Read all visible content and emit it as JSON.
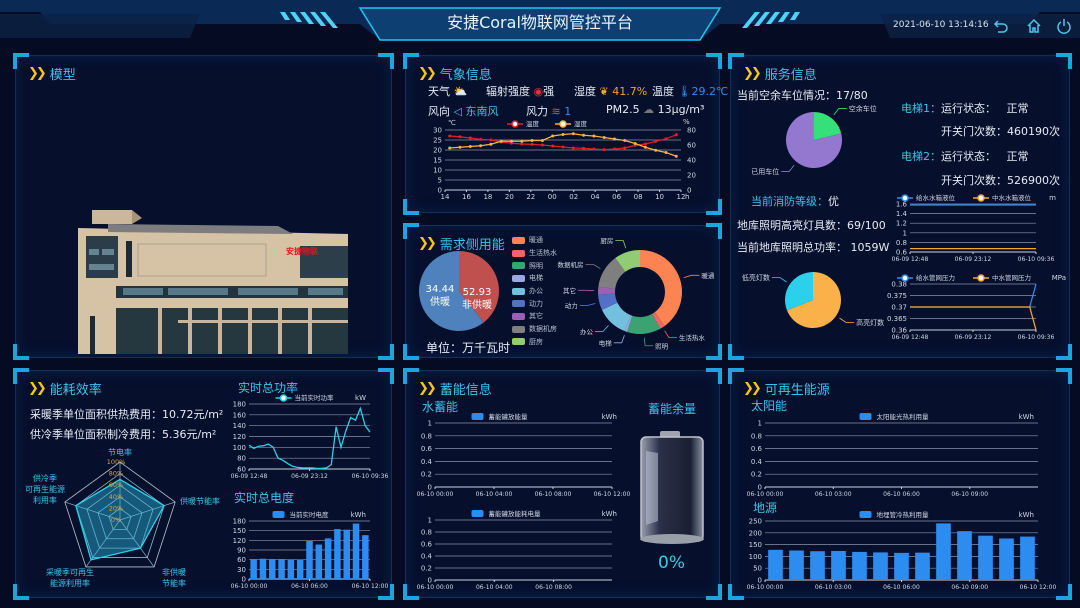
{
  "header": {
    "title": "安捷Coral物联网管控平台",
    "datetime": "2021-06-10 13:14:16",
    "icons": [
      "back-icon",
      "home-icon",
      "power-icon"
    ]
  },
  "colors": {
    "accent": "#3cc4ea",
    "bar": "#2d8cf0",
    "chevron": "#f5c518"
  },
  "model": {
    "title": "模型",
    "building_sign": "安捷物联"
  },
  "weather": {
    "title": "气象信息",
    "weather_label": "天气",
    "weather_icon": "cloudy-sun-icon",
    "radiation_label": "辐射强度",
    "radiation_value": "强",
    "humidity_label": "湿度",
    "humidity_value": "41.7%",
    "temperature_label": "温度",
    "temperature_value": "29.2℃",
    "wind_dir_label": "风向",
    "wind_dir_value": "东南风",
    "wind_force_label": "风力",
    "wind_force_value": "1",
    "pm_label": "PM2.5",
    "pm_value": "13μg/m³"
  },
  "demand": {
    "title": "需求侧用能",
    "unit": "单位：万千瓦时",
    "pie": [
      {
        "name": "供暖",
        "value": 34.44,
        "color": "#c0504d"
      },
      {
        "name": "非供暖",
        "value": 52.93,
        "color": "#4f81bd"
      }
    ],
    "donut": [
      {
        "name": "暖通",
        "value": 40,
        "color": "#fc8452"
      },
      {
        "name": "生活热水",
        "value": 2,
        "color": "#ee6666"
      },
      {
        "name": "照明",
        "value": 13,
        "color": "#3ba272"
      },
      {
        "name": "电梯",
        "value": 1,
        "color": "#9aa8e0"
      },
      {
        "name": "办公",
        "value": 12,
        "color": "#73c0de"
      },
      {
        "name": "动力",
        "value": 6,
        "color": "#5470c6"
      },
      {
        "name": "其它",
        "value": 3,
        "color": "#9a60b4"
      },
      {
        "name": "数据机房",
        "value": 13,
        "color": "#7f7f7f"
      },
      {
        "name": "厨房",
        "value": 10,
        "color": "#91cc75"
      }
    ]
  },
  "service": {
    "title": "服务信息",
    "parking_label": "当前空余车位情况：",
    "parking_value": "17/80",
    "parking_pie": [
      {
        "name": "空余车位",
        "value": 17,
        "color": "#35e07a"
      },
      {
        "name": "已用车位",
        "value": 63,
        "color": "#9478d0"
      }
    ],
    "elevators": [
      {
        "name": "电梯1：",
        "status_label": "运行状态：",
        "status": "正常",
        "count_label": "开关门次数：",
        "count": "460190次"
      },
      {
        "name": "电梯2：",
        "status_label": "运行状态：",
        "status": "正常",
        "count_label": "开关门次数：",
        "count": "526900次"
      }
    ],
    "fire_label": "当前消防等级：",
    "fire_value": "优",
    "lights_label": "地库照明高亮灯具数：",
    "lights_value": "69/100",
    "power_label": "当前地库照明总功率：",
    "power_value": "1059W",
    "light_pie": [
      {
        "name": "高亮灯数",
        "value": 69,
        "color": "#fbb14a"
      },
      {
        "name": "低亮灯数",
        "value": 31,
        "color": "#2bd0ea"
      }
    ]
  },
  "efficiency": {
    "title": "能耗效率",
    "heat_cost_label": "采暖季单位面积供热费用：",
    "heat_cost_value": "10.72元/m²",
    "cool_cost_label": "供冷季单位面积制冷费用：",
    "cool_cost_value": "5.36元/m²",
    "power_title": "实时总功率",
    "energy_title": "实时总电度"
  },
  "storage": {
    "title": "蓄能信息",
    "water_title": "水蓄能",
    "remaining_title": "蓄能余量",
    "remaining_value": "0%",
    "remaining_fraction": 0
  },
  "renewable": {
    "title": "可再生能源",
    "solar_title": "太阳能",
    "ground_title": "地源"
  },
  "chart_data": [
    {
      "id": "weather",
      "type": "line",
      "x": [
        "14",
        "15",
        "16",
        "17",
        "18",
        "19",
        "20",
        "21",
        "22",
        "23",
        "00",
        "01",
        "02",
        "03",
        "04",
        "05",
        "06",
        "07",
        "08",
        "09",
        "10",
        "11",
        "12"
      ],
      "x_ticks": [
        "14",
        "16",
        "18",
        "20",
        "22",
        "00",
        "02",
        "04",
        "06",
        "08",
        "10",
        "12"
      ],
      "xlabel": "h",
      "ylabel": "℃",
      "ylim": [
        0,
        30
      ],
      "y_ticks": [
        0,
        5,
        10,
        15,
        20,
        25,
        30
      ],
      "y2label": "%",
      "y2lim": [
        0,
        80
      ],
      "y2_ticks": [
        0,
        20,
        40,
        60,
        80
      ],
      "grid": true,
      "legend": "top",
      "series": [
        {
          "name": "温度",
          "axis": "left",
          "color": "#e0202a",
          "values": [
            27,
            26.6,
            26,
            25.3,
            25,
            24,
            23.4,
            23,
            22.8,
            22.5,
            22,
            21.5,
            21,
            20.8,
            20.5,
            20.2,
            20.5,
            21,
            22.3,
            23,
            24.3,
            25.6,
            27.6
          ]
        },
        {
          "name": "湿度",
          "axis": "right",
          "color": "#f5b342",
          "values": [
            56,
            57,
            58,
            59,
            61,
            65,
            65,
            65,
            66,
            66,
            72,
            74,
            75,
            73,
            72,
            70,
            68,
            66,
            62,
            57,
            53,
            50,
            45
          ]
        }
      ]
    },
    {
      "id": "water_level",
      "type": "line",
      "x_ticks": [
        "06-09 12:48",
        "06-09 23:12",
        "06-10 09:36"
      ],
      "ylabel": "m",
      "ylim": [
        0.6,
        1.6
      ],
      "y_ticks": [
        0.6,
        0.8,
        1,
        1.2,
        1.4,
        1.6
      ],
      "grid": true,
      "legend": "top",
      "series": [
        {
          "name": "给水水箱液位",
          "color": "#2d8cf0",
          "values": [
            1.58,
            1.58,
            1.58,
            1.58,
            1.58,
            1.58
          ]
        },
        {
          "name": "中水水箱液位",
          "color": "#f5a623",
          "values": [
            0.67,
            0.67,
            0.67,
            0.67,
            0.67,
            0.67
          ]
        }
      ]
    },
    {
      "id": "pipe_pressure",
      "type": "line",
      "x_ticks": [
        "06-09 12:48",
        "06-09 23:12",
        "06-10 09:36"
      ],
      "ylabel": "MPa",
      "ylim": [
        0.36,
        0.38
      ],
      "y_ticks": [
        0.36,
        0.365,
        0.37,
        0.375,
        0.38
      ],
      "grid": true,
      "legend": "top",
      "series": [
        {
          "name": "给水管网压力",
          "color": "#2d8cf0",
          "values": [
            0.37,
            0.37,
            0.37,
            0.37,
            0.37,
            0.37,
            0.37,
            0.37,
            0.37,
            0.37,
            0.37,
            0.37,
            0.37,
            0.37,
            0.37,
            0.37,
            0.37,
            0.37,
            0.37,
            0.37,
            0.38
          ]
        },
        {
          "name": "中水管网压力",
          "color": "#f5a623",
          "values": [
            0.37,
            0.37,
            0.37,
            0.37,
            0.37,
            0.37,
            0.37,
            0.37,
            0.37,
            0.37,
            0.37,
            0.37,
            0.37,
            0.37,
            0.37,
            0.37,
            0.37,
            0.37,
            0.37,
            0.37,
            0.36
          ]
        }
      ]
    },
    {
      "id": "radar",
      "type": "radar",
      "indicators": [
        "节电率",
        "供暖节能率",
        "非供暖节能率",
        "采暖季可再生能源利用率",
        "供冷季可再生能源利用率"
      ],
      "indicator_lines": [
        [
          "节电率"
        ],
        [
          "供暖",
          "节能率"
        ],
        [
          "非供暖",
          "节能率"
        ],
        [
          "采暖季可再生",
          "能源利用率"
        ],
        [
          "供冷季",
          "可再生能源",
          "利用率"
        ]
      ],
      "values": [
        70,
        80,
        60,
        85,
        80
      ],
      "r_ticks": [
        "0%",
        "20%",
        "40%",
        "60%",
        "80%",
        "100%"
      ],
      "max": 100
    },
    {
      "id": "power",
      "type": "line",
      "x_ticks": [
        "06-09 12:48",
        "06-09 23:12",
        "06-10 09:36"
      ],
      "ylabel": "kW",
      "ylim": [
        60,
        180
      ],
      "y_ticks": [
        60,
        80,
        100,
        120,
        140,
        160,
        180
      ],
      "grid": true,
      "legend": "top",
      "series": [
        {
          "name": "当前实时功率",
          "color": "#2bd0ea",
          "smooth": true,
          "values": [
            104,
            98,
            102,
            103,
            106,
            100,
            80,
            76,
            70,
            65,
            63,
            62,
            62,
            62,
            61,
            61,
            62,
            68,
            138,
            100,
            130,
            155,
            150,
            172,
            140,
            128
          ]
        }
      ]
    },
    {
      "id": "energy",
      "type": "bar",
      "x_ticks": [
        "06-10 00:00",
        "06-10 06:00",
        "06-10 12:00"
      ],
      "ylabel": "kWh",
      "ylim": [
        0,
        180
      ],
      "y_ticks": [
        0,
        30,
        60,
        90,
        120,
        150,
        180
      ],
      "grid": true,
      "legend": "top",
      "series": [
        {
          "name": "当前实时电度",
          "color": "#2d8cf0",
          "values": [
            62,
            63,
            62,
            62,
            59,
            60,
            118,
            107,
            126,
            155,
            153,
            172,
            136
          ]
        }
      ]
    },
    {
      "id": "storage_release",
      "type": "bar",
      "x_ticks": [
        "06-10 00:00",
        "06-10 04:00",
        "06-10 08:00",
        "06-10 12:00"
      ],
      "ylabel": "kWh",
      "ylim": [
        0,
        1
      ],
      "y_ticks": [
        0,
        0.2,
        0.4,
        0.6,
        0.8,
        1
      ],
      "grid": true,
      "legend": "top",
      "series": [
        {
          "name": "蓄能罐放能量",
          "color": "#2d8cf0",
          "values": []
        }
      ]
    },
    {
      "id": "storage_power",
      "type": "bar",
      "x_ticks": [
        "06-10 00:00",
        "06-10 04:00",
        "06-10 08:00"
      ],
      "ylabel": "kWh",
      "ylim": [
        0,
        1
      ],
      "y_ticks": [
        0,
        0.2,
        0.4,
        0.6,
        0.8,
        1
      ],
      "grid": true,
      "legend": "top",
      "series": [
        {
          "name": "蓄能罐放能耗电量",
          "color": "#2d8cf0",
          "values": []
        }
      ]
    },
    {
      "id": "solar",
      "type": "bar",
      "x_ticks": [
        "06-10 00:00",
        "06-10 03:00",
        "06-10 06:00",
        "06-10 09:00"
      ],
      "ylabel": "kWh",
      "ylim": [
        0,
        1
      ],
      "y_ticks": [
        0,
        0.2,
        0.4,
        0.6,
        0.8,
        1
      ],
      "grid": true,
      "legend": "top",
      "series": [
        {
          "name": "太阳能光热利用量",
          "color": "#2d8cf0",
          "values": []
        }
      ]
    },
    {
      "id": "ground",
      "type": "bar",
      "x_ticks": [
        "06-10 00:00",
        "06-10 03:00",
        "06-10 06:00",
        "06-10 09:00",
        "06-10 12:00"
      ],
      "ylabel": "kWh",
      "ylim": [
        0,
        250
      ],
      "y_ticks": [
        0,
        50,
        100,
        150,
        200,
        250
      ],
      "grid": true,
      "legend": "top",
      "series": [
        {
          "name": "地埋管冷热利用量",
          "color": "#2d8cf0",
          "values": [
            128,
            125,
            122,
            123,
            119,
            117,
            115,
            116,
            240,
            207,
            188,
            176,
            184
          ]
        }
      ]
    }
  ]
}
